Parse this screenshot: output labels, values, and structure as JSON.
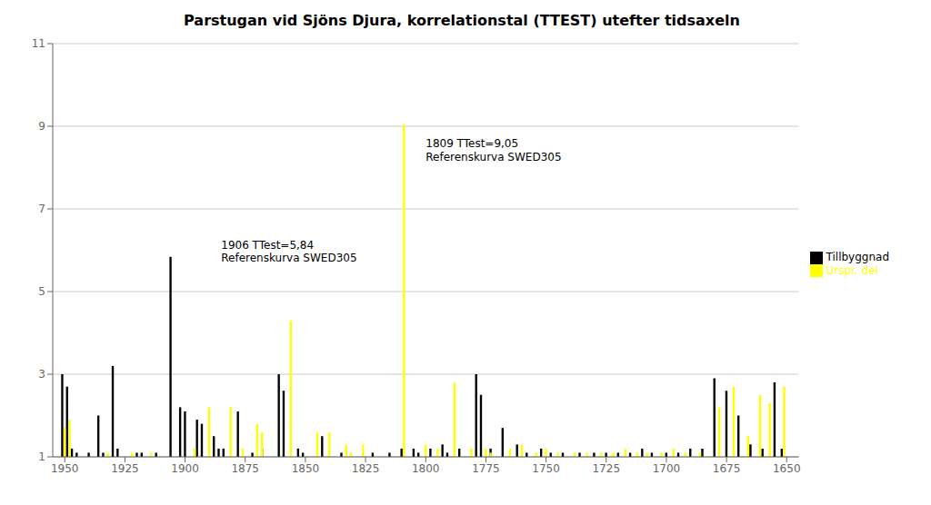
{
  "chart_data": {
    "type": "bar",
    "title": "Parstugan vid Sjöns Djura,  korrelationstal (TTEST) utefter tidsaxeln",
    "xlim": [
      1955,
      1645
    ],
    "ylim": [
      1,
      11
    ],
    "xticks": [
      1950,
      1925,
      1900,
      1875,
      1850,
      1825,
      1800,
      1775,
      1750,
      1725,
      1700,
      1675,
      1650
    ],
    "yticks": [
      1,
      3,
      5,
      7,
      9,
      11
    ],
    "grid": true,
    "legend": "right",
    "series": [
      {
        "name": "Tillbyggnad",
        "color": "black",
        "x": [
          1951,
          1949,
          1947,
          1945,
          1940,
          1936,
          1934,
          1930,
          1928,
          1920,
          1918,
          1912,
          1906,
          1902,
          1900,
          1895,
          1893,
          1888,
          1886,
          1884,
          1878,
          1872,
          1868,
          1861,
          1859,
          1853,
          1851,
          1843,
          1835,
          1822,
          1815,
          1810,
          1805,
          1803,
          1798,
          1793,
          1791,
          1786,
          1779,
          1777,
          1773,
          1768,
          1762,
          1758,
          1752,
          1748,
          1743,
          1736,
          1730,
          1725,
          1720,
          1715,
          1710,
          1706,
          1700,
          1695,
          1690,
          1685,
          1680,
          1675,
          1670,
          1665,
          1660,
          1655,
          1652
        ],
        "values": [
          3.0,
          2.7,
          1.2,
          1.1,
          1.1,
          2.0,
          1.1,
          3.2,
          1.2,
          1.1,
          1.1,
          1.1,
          5.84,
          2.2,
          2.1,
          1.9,
          1.8,
          1.5,
          1.2,
          1.2,
          2.1,
          1.1,
          1.2,
          3.0,
          2.6,
          1.2,
          1.1,
          1.5,
          1.1,
          1.1,
          1.1,
          1.2,
          1.2,
          1.1,
          1.2,
          1.3,
          1.1,
          1.2,
          3.0,
          2.5,
          1.2,
          1.7,
          1.3,
          1.1,
          1.2,
          1.1,
          1.1,
          1.1,
          1.1,
          1.1,
          1.1,
          1.1,
          1.2,
          1.1,
          1.1,
          1.1,
          1.2,
          1.2,
          2.9,
          2.6,
          2.0,
          1.3,
          1.2,
          2.8,
          1.2
        ]
      },
      {
        "name": "Urspr. del",
        "color": "yellow",
        "x": [
          1950,
          1948,
          1932,
          1922,
          1914,
          1896,
          1890,
          1881,
          1876,
          1870,
          1868,
          1856,
          1845,
          1840,
          1833,
          1831,
          1826,
          1809,
          1800,
          1795,
          1788,
          1781,
          1775,
          1773,
          1765,
          1760,
          1754,
          1750,
          1745,
          1738,
          1733,
          1727,
          1722,
          1717,
          1712,
          1708,
          1702,
          1697,
          1692,
          1686,
          1678,
          1672,
          1666,
          1661,
          1657,
          1651
        ],
        "values": [
          1.7,
          1.9,
          1.1,
          1.1,
          1.1,
          1.2,
          2.2,
          2.2,
          1.2,
          1.8,
          1.6,
          4.3,
          1.6,
          1.6,
          1.3,
          1.1,
          1.3,
          9.05,
          1.3,
          1.2,
          2.8,
          1.2,
          1.2,
          1.1,
          1.2,
          1.3,
          1.1,
          1.2,
          1.1,
          1.1,
          1.1,
          1.1,
          1.1,
          1.2,
          1.1,
          1.1,
          1.1,
          1.2,
          1.1,
          1.1,
          2.2,
          2.7,
          1.5,
          2.5,
          2.3,
          2.7
        ]
      }
    ],
    "annotations": [
      {
        "text": "1809 TTest=9,05\nReferenskurva SWED305",
        "x": 1800,
        "y": 8.75
      },
      {
        "text": "1906 TTest=5,84\nReferenskurva SWED305",
        "x": 1885,
        "y": 6.3
      }
    ]
  }
}
